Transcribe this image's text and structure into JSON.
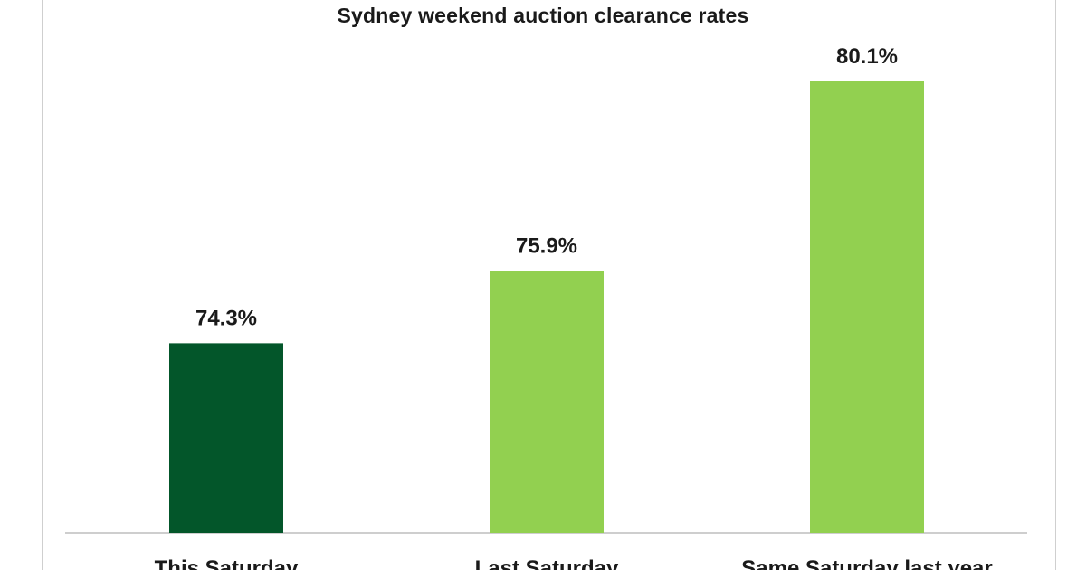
{
  "chart_data": {
    "type": "bar",
    "title": "Sydney weekend auction clearance rates",
    "categories": [
      "This Saturday",
      "Last Saturday",
      "Same Saturday last year"
    ],
    "values": [
      74.3,
      75.9,
      80.1
    ],
    "value_labels": [
      "74.3%",
      "75.9%",
      "80.1%"
    ],
    "colors": [
      "#03562a",
      "#92d050",
      "#92d050"
    ],
    "xlabel": "",
    "ylabel": "",
    "ylim": [
      70.1,
      80.9
    ],
    "grid": false,
    "legend": "none"
  },
  "colors": {
    "axis": "#bdbdbd",
    "frame": "#cfcfcf",
    "text": "#1a1a1a"
  }
}
